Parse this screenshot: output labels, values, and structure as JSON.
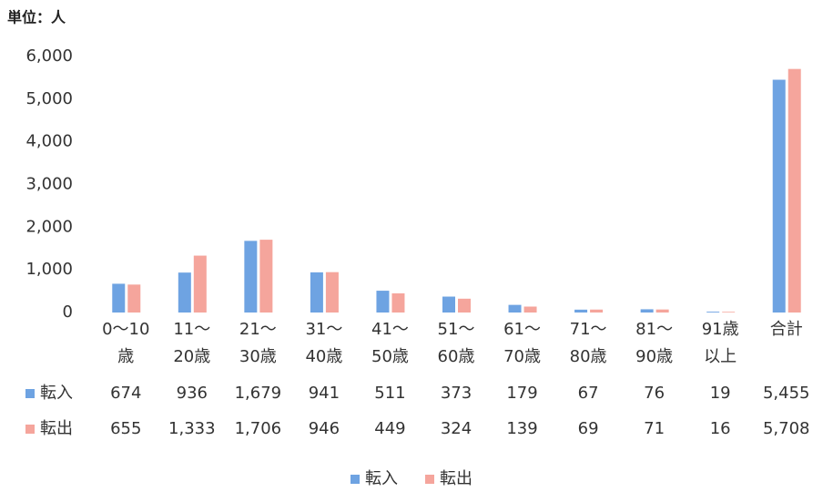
{
  "chart_data": {
    "type": "bar",
    "annotation": "単位：人",
    "categories": [
      [
        "0～10",
        "歳"
      ],
      [
        "11～",
        "20歳"
      ],
      [
        "21～",
        "30歳"
      ],
      [
        "31～",
        "40歳"
      ],
      [
        "41～",
        "50歳"
      ],
      [
        "51～",
        "60歳"
      ],
      [
        "61～",
        "70歳"
      ],
      [
        "71～",
        "80歳"
      ],
      [
        "81～",
        "90歳"
      ],
      [
        "91歳",
        "以上"
      ],
      [
        "合計"
      ]
    ],
    "series": [
      {
        "name": "転入",
        "color": "#6ea3e2",
        "values": [
          674,
          936,
          1679,
          941,
          511,
          373,
          179,
          67,
          76,
          19,
          5455
        ],
        "value_labels": [
          "674",
          "936",
          "1,679",
          "941",
          "511",
          "373",
          "179",
          "67",
          "76",
          "19",
          "5,455"
        ]
      },
      {
        "name": "転出",
        "color": "#f5a59c",
        "values": [
          655,
          1333,
          1706,
          946,
          449,
          324,
          139,
          69,
          71,
          16,
          5708
        ],
        "value_labels": [
          "655",
          "1,333",
          "1,706",
          "946",
          "449",
          "324",
          "139",
          "69",
          "71",
          "16",
          "5,708"
        ]
      }
    ],
    "ylim": [
      0,
      6000
    ],
    "yticks": [
      0,
      {
        "value": 1000,
        "label": "1,000"
      },
      {
        "value": 2000,
        "label": "2,000"
      },
      {
        "value": 3000,
        "label": "3,000"
      },
      {
        "value": 4000,
        "label": "4,000"
      },
      {
        "value": 5000,
        "label": "5,000"
      },
      {
        "value": 6000,
        "label": "6,000"
      }
    ],
    "grid": false,
    "legend": "bottom"
  }
}
